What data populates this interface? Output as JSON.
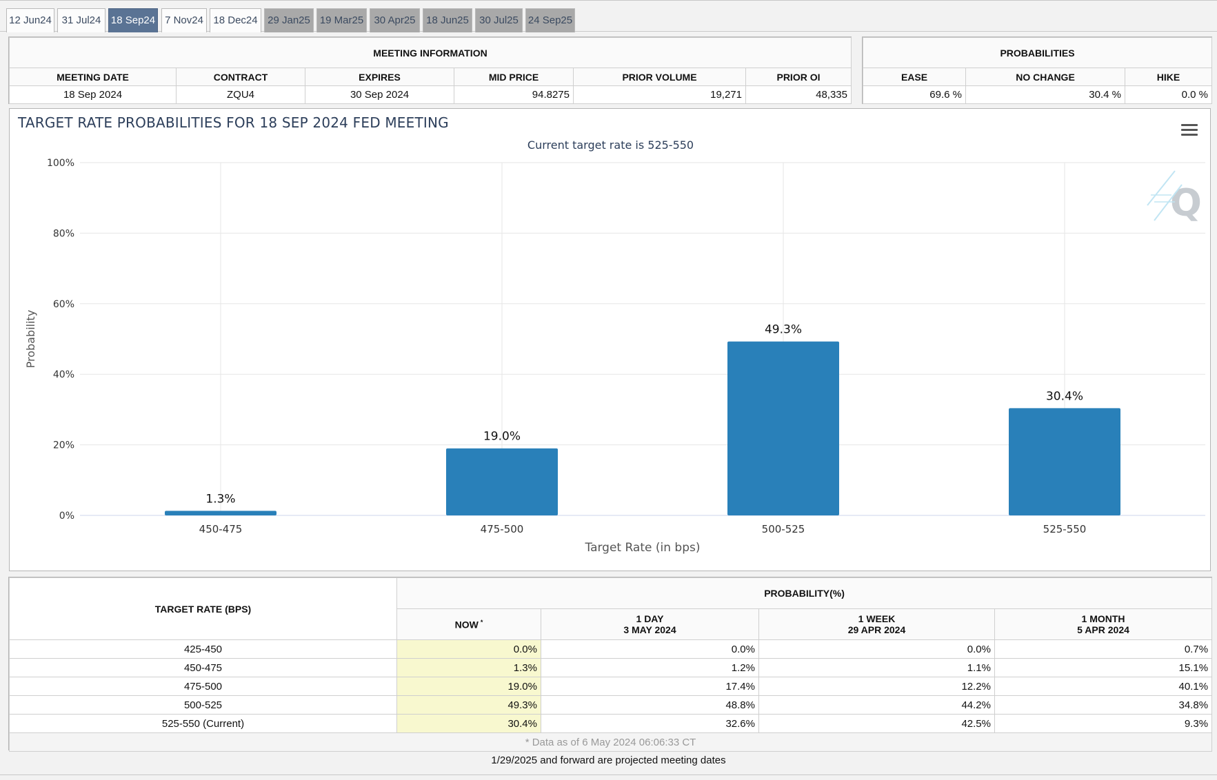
{
  "tabs": [
    {
      "label": "12 Jun24",
      "state": "past"
    },
    {
      "label": "31 Jul24",
      "state": "past"
    },
    {
      "label": "18 Sep24",
      "state": "active"
    },
    {
      "label": "7 Nov24",
      "state": "past"
    },
    {
      "label": "18 Dec24",
      "state": "past"
    },
    {
      "label": "29 Jan25",
      "state": "future"
    },
    {
      "label": "19 Mar25",
      "state": "future"
    },
    {
      "label": "30 Apr25",
      "state": "future"
    },
    {
      "label": "18 Jun25",
      "state": "future"
    },
    {
      "label": "30 Jul25",
      "state": "future"
    },
    {
      "label": "24 Sep25",
      "state": "future"
    }
  ],
  "meeting_info": {
    "header": "MEETING INFORMATION",
    "columns": [
      "MEETING DATE",
      "CONTRACT",
      "EXPIRES",
      "MID PRICE",
      "PRIOR VOLUME",
      "PRIOR OI"
    ],
    "values": [
      "18 Sep 2024",
      "ZQU4",
      "30 Sep 2024",
      "94.8275",
      "19,271",
      "48,335"
    ]
  },
  "probabilities": {
    "header": "PROBABILITIES",
    "columns": [
      "EASE",
      "NO CHANGE",
      "HIKE"
    ],
    "values": [
      "69.6 %",
      "30.4 %",
      "0.0 %"
    ]
  },
  "chart_data": {
    "type": "bar",
    "title": "TARGET RATE PROBABILITIES FOR 18 SEP 2024 FED MEETING",
    "subtitle": "Current target rate is 525-550",
    "xlabel": "Target Rate (in bps)",
    "ylabel": "Probability",
    "categories": [
      "450-475",
      "475-500",
      "500-525",
      "525-550"
    ],
    "values": [
      1.3,
      19.0,
      49.3,
      30.4
    ],
    "data_labels": [
      "1.3%",
      "19.0%",
      "49.3%",
      "30.4%"
    ],
    "yticks": [
      0,
      20,
      40,
      60,
      80,
      100
    ],
    "ytick_labels": [
      "0%",
      "20%",
      "40%",
      "60%",
      "80%",
      "100%"
    ],
    "ylim": [
      0,
      100
    ],
    "grid": true,
    "bar_color": "#2980b9"
  },
  "prob_table": {
    "rate_header": "TARGET RATE (BPS)",
    "prob_header": "PROBABILITY(%)",
    "sub_headers": [
      {
        "line1": "NOW",
        "line2": ""
      },
      {
        "line1": "1 DAY",
        "line2": "3 MAY 2024"
      },
      {
        "line1": "1 WEEK",
        "line2": "29 APR 2024"
      },
      {
        "line1": "1 MONTH",
        "line2": "5 APR 2024"
      }
    ],
    "now_marker": "*",
    "rows": [
      {
        "rate": "425-450",
        "now": "0.0%",
        "day": "0.0%",
        "week": "0.0%",
        "month": "0.7%"
      },
      {
        "rate": "450-475",
        "now": "1.3%",
        "day": "1.2%",
        "week": "1.1%",
        "month": "15.1%"
      },
      {
        "rate": "475-500",
        "now": "19.0%",
        "day": "17.4%",
        "week": "12.2%",
        "month": "40.1%"
      },
      {
        "rate": "500-525",
        "now": "49.3%",
        "day": "48.8%",
        "week": "44.2%",
        "month": "34.8%"
      },
      {
        "rate": "525-550 (Current)",
        "now": "30.4%",
        "day": "32.6%",
        "week": "42.5%",
        "month": "9.3%"
      }
    ],
    "data_note": "* Data as of 6 May 2024 06:06:33 CT"
  },
  "footer_note": "1/29/2025 and forward are projected meeting dates",
  "colors": {
    "accent": "#5a7394",
    "now_highlight": "#f8f8cf",
    "title": "#2c3e5a"
  }
}
